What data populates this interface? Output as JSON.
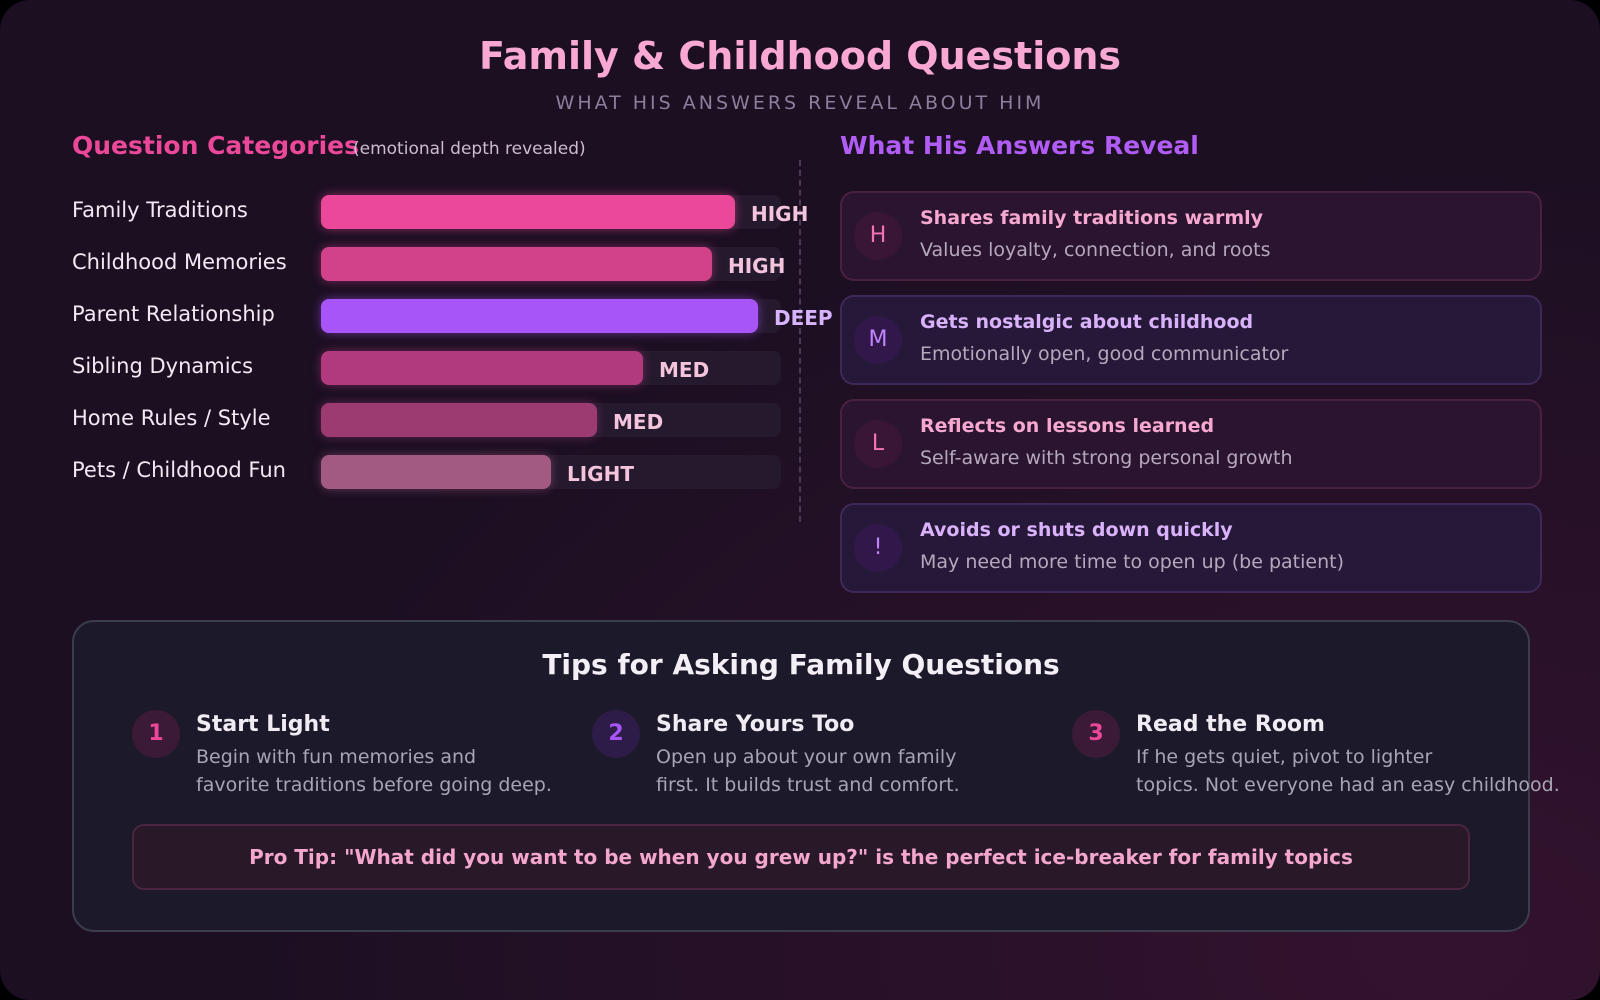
{
  "header": {
    "title": "Family & Childhood Questions",
    "subtitle": "WHAT HIS ANSWERS REVEAL ABOUT HIM"
  },
  "categories_panel": {
    "title": "Question Categories",
    "note": "(emotional depth revealed)",
    "xlim": [
      0,
      100
    ],
    "bars": [
      {
        "label": "Family Traditions",
        "level": "HIGH",
        "value": 90,
        "color": "#ec4899"
      },
      {
        "label": "Childhood Memories",
        "level": "HIGH",
        "value": 85,
        "color": "#d1428a"
      },
      {
        "label": "Parent Relationship",
        "level": "DEEP",
        "value": 95,
        "color": "#a855f7"
      },
      {
        "label": "Sibling Dynamics",
        "level": "MED",
        "value": 70,
        "color": "#b03a7c"
      },
      {
        "label": "Home Rules / Style",
        "level": "MED",
        "value": 60,
        "color": "#9c3b72"
      },
      {
        "label": "Pets / Childhood Fun",
        "level": "LIGHT",
        "value": 50,
        "color": "#a35a82"
      }
    ]
  },
  "reveal_panel": {
    "title": "What His Answers Reveal",
    "cards": [
      {
        "icon": "H",
        "title": "Shares family traditions warmly",
        "text": "Values loyalty, connection, and roots"
      },
      {
        "icon": "M",
        "title": "Gets nostalgic about childhood",
        "text": "Emotionally open, good communicator"
      },
      {
        "icon": "L",
        "title": "Reflects on lessons learned",
        "text": "Self-aware with strong personal growth"
      },
      {
        "icon": "!",
        "title": "Avoids or shuts down quickly",
        "text": "May need more time to open up (be patient)"
      }
    ]
  },
  "tips": {
    "title": "Tips for Asking Family Questions",
    "items": [
      {
        "number": "1",
        "title": "Start Light",
        "lines": [
          "Begin with fun memories and",
          "favorite traditions before going deep."
        ]
      },
      {
        "number": "2",
        "title": "Share Yours Too",
        "lines": [
          "Open up about your own family",
          "first. It builds trust and comfort."
        ]
      },
      {
        "number": "3",
        "title": "Read the Room",
        "lines": [
          "If he gets quiet, pivot to lighter",
          "topics. Not everyone had an easy childhood."
        ]
      }
    ],
    "pro_tip": "Pro Tip: \"What did you want to be when you grew up?\" is the perfect ice-breaker for family topics"
  }
}
